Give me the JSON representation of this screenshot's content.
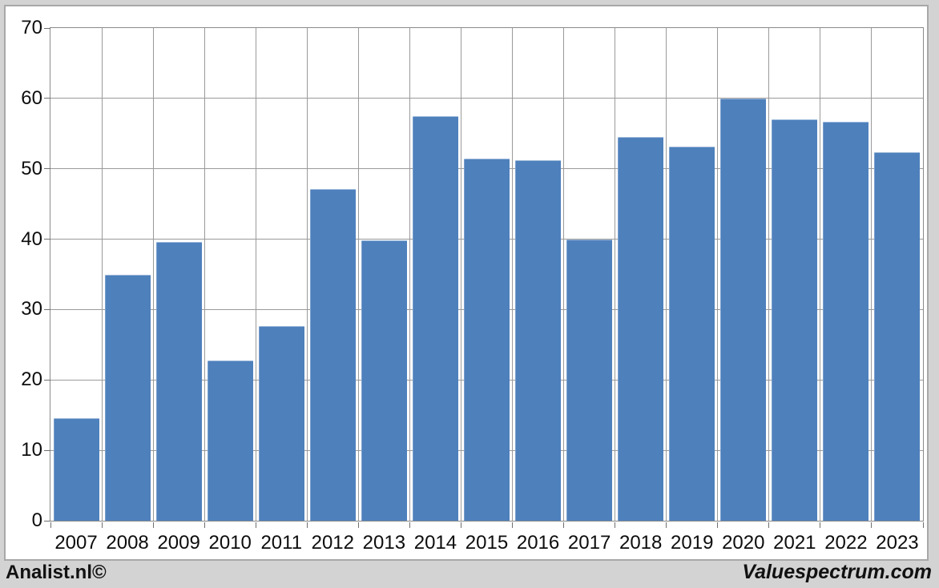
{
  "page": {
    "background_color": "#d3d3d3",
    "chart_background_color": "#ffffff",
    "chart_border_color": "#a8a8a8"
  },
  "footer": {
    "left_credit": "Analist.nl©",
    "right_credit": "Valuespectrum.com"
  },
  "chart_data": {
    "type": "bar",
    "title": "",
    "xlabel": "",
    "ylabel": "",
    "categories": [
      "2007",
      "2008",
      "2009",
      "2010",
      "2011",
      "2012",
      "2013",
      "2014",
      "2015",
      "2016",
      "2017",
      "2018",
      "2019",
      "2020",
      "2021",
      "2022",
      "2023"
    ],
    "values": [
      14.6,
      35.0,
      39.6,
      22.8,
      27.7,
      47.1,
      39.8,
      57.5,
      51.5,
      51.2,
      40.0,
      54.5,
      53.2,
      60.0,
      57.0,
      56.7,
      52.4
    ],
    "ylim": [
      0,
      70
    ],
    "yticks": [
      0,
      10,
      20,
      30,
      40,
      50,
      60,
      70
    ],
    "grid": "both",
    "legend": "none",
    "bar_color": "#4e80bc",
    "gridline_color": "#9a9a9a"
  }
}
